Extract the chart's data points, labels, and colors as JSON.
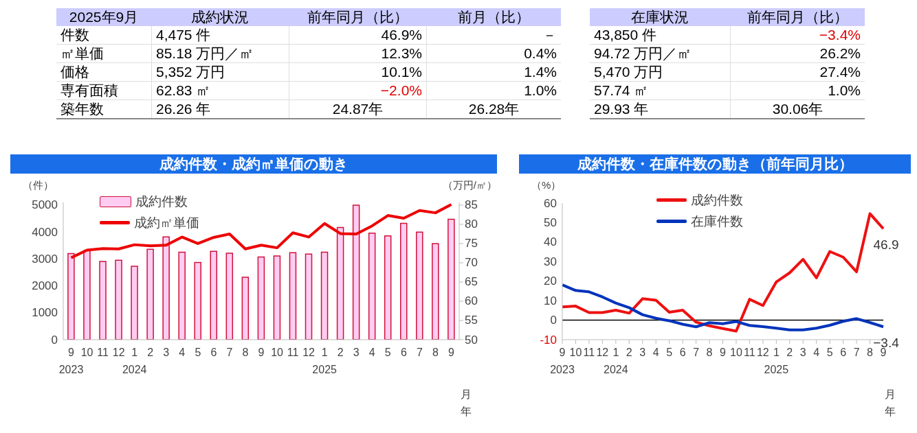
{
  "chart_data": [
    {
      "type": "other",
      "categories": [
        "2025年9月",
        "成約状況",
        "前年同月（比）",
        "前月（比）"
      ],
      "annotations": [
        "件数",
        "4,475 件",
        "46.9%",
        "－",
        "㎡単価",
        "85.18 万円／㎡",
        "12.3%",
        "0.4%",
        "価格",
        "5,352 万円",
        "10.1%",
        "1.4%",
        "専有面積",
        "62.83 ㎡",
        "−2.0%",
        "1.0%",
        "築年数",
        "26.26 年",
        "24.87年",
        "26.28年"
      ]
    },
    {
      "type": "other",
      "categories": [
        "在庫状況",
        "前年同月（比）"
      ],
      "annotations": [
        "43,850 件",
        "−3.4%",
        "94.72 万円／㎡",
        "26.2%",
        "5,470 万円",
        "27.4%",
        "57.74 ㎡",
        "1.0%",
        "29.93 年",
        "30.06年"
      ]
    },
    {
      "type": "bar",
      "title": "成約件数・成約㎡単価の動き",
      "ylabel": "（件）",
      "y2label": "（万円/㎡）",
      "xlabel": "月年",
      "categories": [
        "9\n2023",
        "10",
        "11",
        "12",
        "1\n2024",
        "2",
        "3",
        "4",
        "5",
        "6",
        "7",
        "8",
        "9",
        "10",
        "11",
        "12",
        "1\n2025",
        "2",
        "3",
        "4",
        "5",
        "6",
        "7",
        "8",
        "9"
      ],
      "ylim": [
        0,
        5100
      ],
      "yticks": [
        0,
        1000,
        2000,
        3000,
        4000,
        5000
      ],
      "y2lim": [
        50,
        85.7
      ],
      "y2ticks": [
        50,
        55,
        60,
        65,
        70,
        75,
        80,
        85
      ],
      "legend": "top left",
      "series": [
        {
          "name": "成約件数",
          "type": "bar",
          "color": "#ffccf2",
          "values": [
            3200,
            3310,
            2910,
            2950,
            2730,
            3360,
            3820,
            3250,
            2870,
            3280,
            3210,
            2320,
            3070,
            3110,
            3230,
            3180,
            3250,
            4170,
            5000,
            3960,
            3860,
            4320,
            4000,
            3570,
            4475
          ]
        },
        {
          "name": "成約㎡単価",
          "type": "line",
          "axis": "y2",
          "color": "#ee0000",
          "values": [
            71.3,
            73.3,
            73.7,
            73.6,
            74.7,
            74.4,
            74.6,
            76.7,
            75.0,
            76.6,
            77.5,
            73.6,
            74.6,
            73.9,
            77.8,
            76.7,
            80.2,
            77.6,
            77.5,
            79.6,
            82.3,
            81.6,
            83.6,
            83.0,
            85.18
          ]
        }
      ]
    },
    {
      "type": "line",
      "title": "成約件数・在庫件数の動き（前年同月比）",
      "ylabel": "（%）",
      "xlabel": "月年",
      "categories": [
        "9\n2023",
        "10",
        "11",
        "12",
        "1\n2024",
        "2",
        "3",
        "4",
        "5",
        "6",
        "7",
        "8",
        "9",
        "10",
        "11",
        "12",
        "1\n2025",
        "2",
        "3",
        "4",
        "5",
        "6",
        "7",
        "8",
        "9"
      ],
      "ylim": [
        -10,
        60
      ],
      "yticks": [
        -10,
        0,
        10,
        20,
        30,
        40,
        50,
        60
      ],
      "legend": "top",
      "ref_lines": [
        {
          "axis": "y",
          "value": 0,
          "color": "#000000"
        }
      ],
      "series": [
        {
          "name": "成約件数",
          "color": "#ee1111",
          "values": [
            6.8,
            7.2,
            3.9,
            3.9,
            5.1,
            3.6,
            11.0,
            10.2,
            4.1,
            5.1,
            -1.0,
            -2.9,
            -4.3,
            -5.6,
            10.7,
            7.5,
            19.6,
            24.3,
            31.2,
            21.7,
            35.2,
            32.3,
            24.8,
            54.6,
            46.9
          ],
          "value_labels": [
            null,
            null,
            null,
            null,
            null,
            null,
            null,
            null,
            null,
            null,
            null,
            null,
            null,
            null,
            null,
            null,
            null,
            null,
            null,
            null,
            null,
            null,
            null,
            null,
            "46.9"
          ]
        },
        {
          "name": "在庫件数",
          "color": "#0033bb",
          "values": [
            18.1,
            15.2,
            14.5,
            11.9,
            8.8,
            6.4,
            2.8,
            1.0,
            -0.3,
            -2.1,
            -3.4,
            -1.3,
            -1.8,
            -0.7,
            -2.7,
            -3.3,
            -4.1,
            -5.0,
            -5.0,
            -4.1,
            -2.6,
            -0.6,
            0.8,
            -1.2,
            -3.4
          ],
          "value_labels": [
            null,
            null,
            null,
            null,
            null,
            null,
            null,
            null,
            null,
            null,
            null,
            null,
            null,
            null,
            null,
            null,
            null,
            null,
            null,
            null,
            null,
            null,
            null,
            null,
            "−3.4"
          ]
        }
      ]
    }
  ]
}
